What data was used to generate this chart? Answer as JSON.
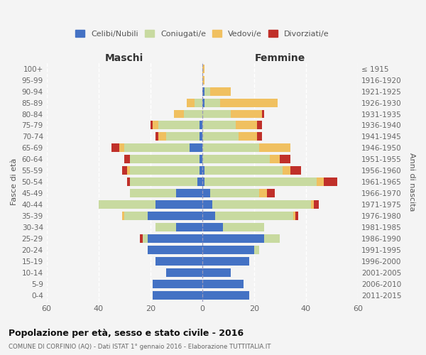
{
  "age_groups": [
    "0-4",
    "5-9",
    "10-14",
    "15-19",
    "20-24",
    "25-29",
    "30-34",
    "35-39",
    "40-44",
    "45-49",
    "50-54",
    "55-59",
    "60-64",
    "65-69",
    "70-74",
    "75-79",
    "80-84",
    "85-89",
    "90-94",
    "95-99",
    "100+"
  ],
  "birth_years": [
    "2011-2015",
    "2006-2010",
    "2001-2005",
    "1996-2000",
    "1991-1995",
    "1986-1990",
    "1981-1985",
    "1976-1980",
    "1971-1975",
    "1966-1970",
    "1961-1965",
    "1956-1960",
    "1951-1955",
    "1946-1950",
    "1941-1945",
    "1936-1940",
    "1931-1935",
    "1926-1930",
    "1921-1925",
    "1916-1920",
    "≤ 1915"
  ],
  "male_celibi": [
    19,
    19,
    14,
    18,
    21,
    21,
    10,
    21,
    18,
    10,
    2,
    1,
    1,
    5,
    1,
    1,
    0,
    0,
    0,
    0,
    0
  ],
  "male_coniugati": [
    0,
    0,
    0,
    0,
    0,
    2,
    8,
    9,
    22,
    18,
    26,
    27,
    27,
    25,
    13,
    16,
    7,
    3,
    0,
    0,
    0
  ],
  "male_vedovi": [
    0,
    0,
    0,
    0,
    0,
    0,
    0,
    1,
    0,
    0,
    0,
    1,
    0,
    2,
    3,
    2,
    4,
    3,
    0,
    0,
    0
  ],
  "male_divorziati": [
    0,
    0,
    0,
    0,
    0,
    1,
    0,
    0,
    0,
    0,
    1,
    2,
    2,
    3,
    1,
    1,
    0,
    0,
    0,
    0,
    0
  ],
  "female_nubili": [
    18,
    16,
    11,
    18,
    20,
    24,
    8,
    5,
    4,
    3,
    1,
    1,
    0,
    0,
    0,
    0,
    0,
    1,
    1,
    0,
    0
  ],
  "female_coniugate": [
    0,
    0,
    0,
    0,
    2,
    6,
    16,
    30,
    38,
    19,
    43,
    30,
    26,
    22,
    14,
    13,
    11,
    6,
    2,
    0,
    0
  ],
  "female_vedove": [
    0,
    0,
    0,
    0,
    0,
    0,
    0,
    1,
    1,
    3,
    3,
    3,
    4,
    12,
    7,
    8,
    12,
    22,
    8,
    1,
    1
  ],
  "female_divorziate": [
    0,
    0,
    0,
    0,
    0,
    0,
    0,
    1,
    2,
    3,
    5,
    4,
    4,
    0,
    2,
    2,
    1,
    0,
    0,
    0,
    0
  ],
  "color_celibi": "#4472C4",
  "color_coniugati": "#c8daa0",
  "color_vedovi": "#f0c060",
  "color_divorziati": "#c0302a",
  "title": "Popolazione per età, sesso e stato civile - 2016",
  "subtitle": "COMUNE DI CORFINIO (AQ) - Dati ISTAT 1° gennaio 2016 - Elaborazione TUTTITALIA.IT",
  "label_maschi": "Maschi",
  "label_femmine": "Femmine",
  "ylabel_left": "Fasce di età",
  "ylabel_right": "Anni di nascita",
  "xlim": 60,
  "legend_labels": [
    "Celibi/Nubili",
    "Coniugati/e",
    "Vedovi/e",
    "Divorziati/e"
  ],
  "bg_color": "#f4f4f4"
}
